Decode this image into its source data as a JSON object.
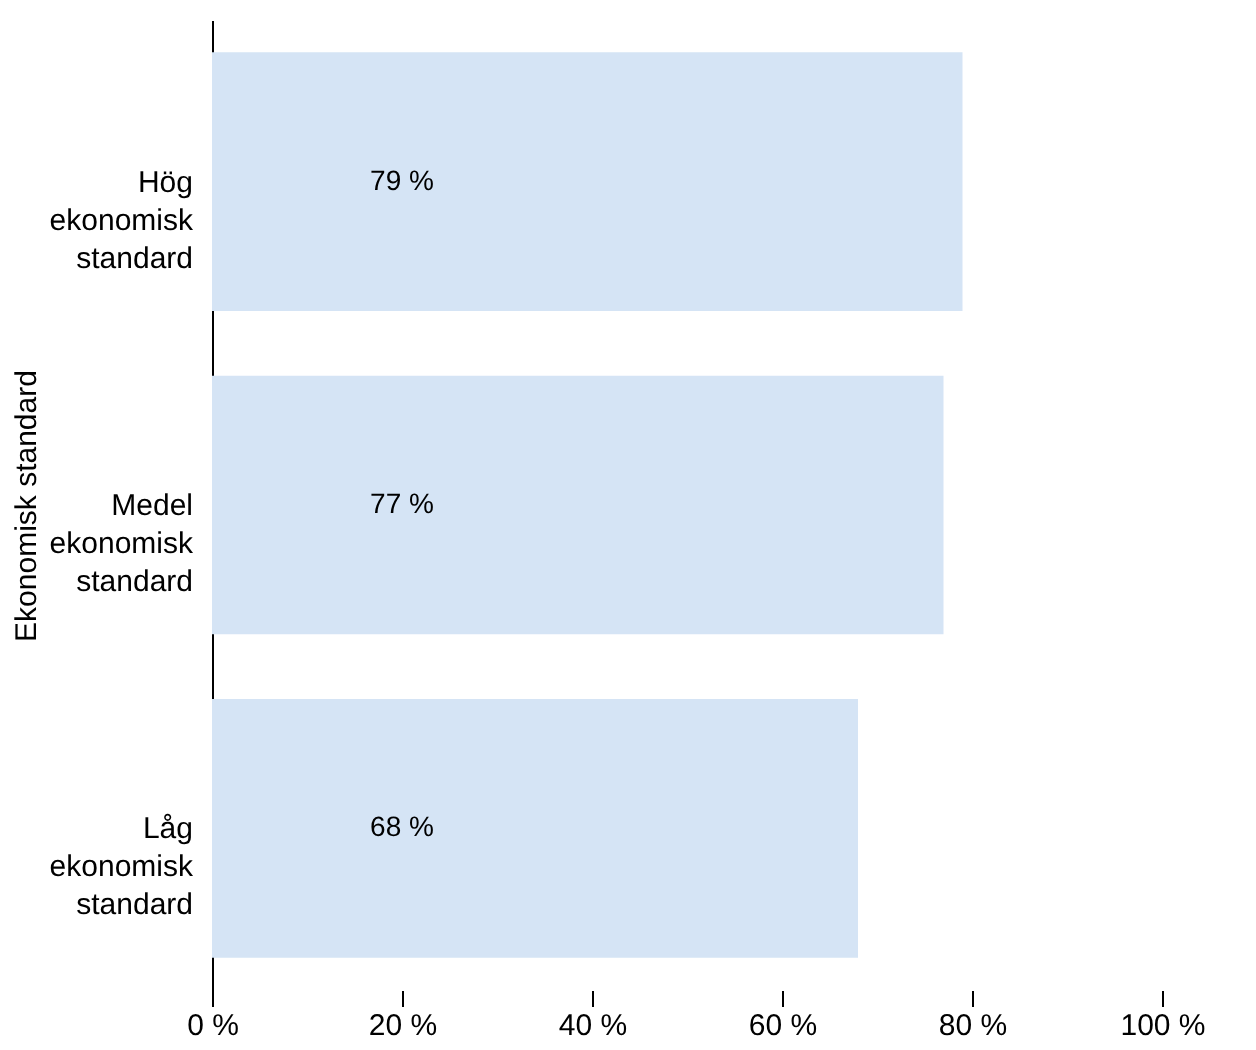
{
  "chart_data": {
    "type": "bar",
    "orientation": "horizontal",
    "ylabel": "Ekonomisk standard",
    "categories": [
      "Hög ekonomisk standard",
      "Medel ekonomisk standard",
      "Låg ekonomisk standard"
    ],
    "values": [
      79,
      77,
      68
    ],
    "color": "#d5e4f5",
    "value_labels": [
      "79 %",
      "77 %",
      "68 %"
    ],
    "xlim": [
      0,
      100
    ],
    "xticks": [
      {
        "value": 0,
        "label": "0 %"
      },
      {
        "value": 20,
        "label": "20 %"
      },
      {
        "value": 40,
        "label": "40 %"
      },
      {
        "value": 60,
        "label": "60 %"
      },
      {
        "value": 80,
        "label": "80 %"
      },
      {
        "value": 100,
        "label": "100 %"
      }
    ],
    "grid": false
  }
}
